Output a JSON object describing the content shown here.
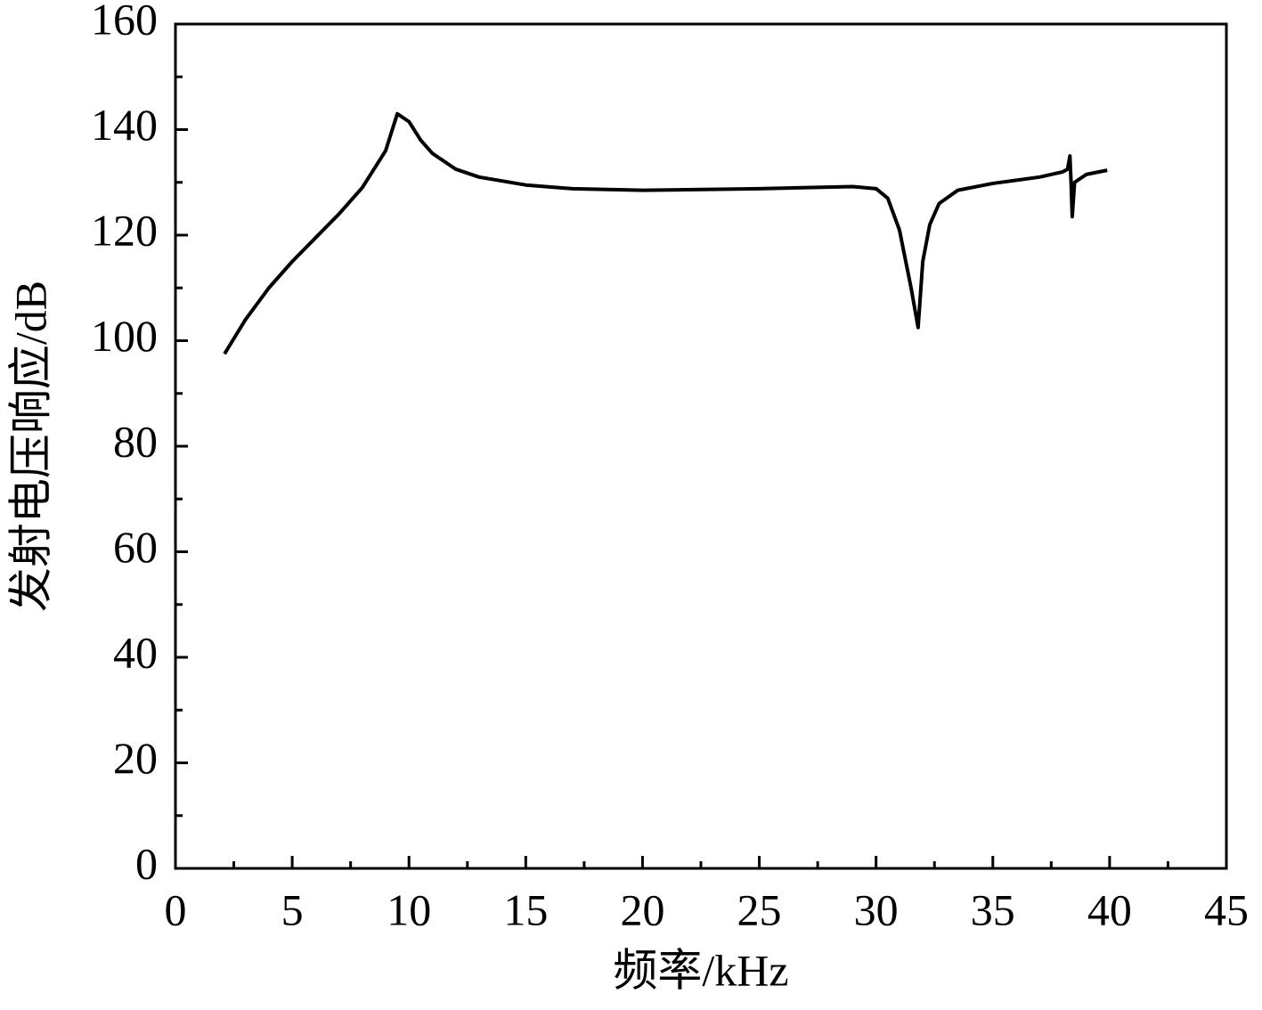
{
  "chart_data": {
    "type": "line",
    "x_label": "频率/kHz",
    "y_label": "发射电压响应/dB",
    "xlim": [
      0,
      45
    ],
    "xticks": [
      0,
      5,
      10,
      15,
      20,
      25,
      30,
      35,
      40,
      45
    ],
    "ylim": [
      0,
      160
    ],
    "yticks": [
      0,
      20,
      40,
      60,
      80,
      100,
      120,
      140,
      160
    ],
    "series": [
      {
        "color": "#000000",
        "x": [
          2.1,
          3,
          4,
          5,
          6,
          7,
          8,
          9,
          9.5,
          10,
          10.5,
          11,
          12,
          13,
          15,
          17,
          20,
          25,
          29,
          30,
          30.5,
          31,
          31.5,
          31.8,
          32,
          32.3,
          32.7,
          33.5,
          35,
          37,
          38,
          38.2,
          38.3,
          38.35,
          38.4,
          38.5,
          39,
          39.9
        ],
        "values": [
          97.5,
          104,
          110,
          115,
          119.5,
          124,
          129,
          136,
          143,
          141.5,
          138,
          135.5,
          132.5,
          131,
          129.5,
          128.8,
          128.5,
          128.8,
          129.2,
          128.8,
          127,
          121,
          110,
          102.5,
          115,
          122,
          126,
          128.5,
          129.8,
          131,
          132,
          132.5,
          135,
          130,
          123.5,
          130,
          131.5,
          132.3
        ]
      }
    ]
  }
}
